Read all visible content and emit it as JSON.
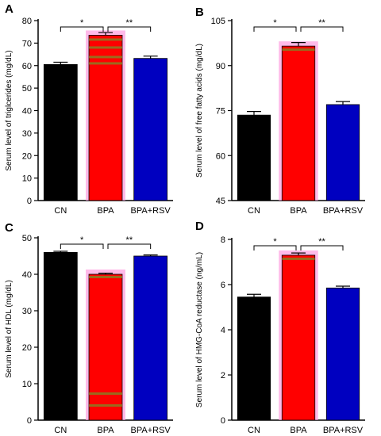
{
  "chart_data": [
    {
      "panel": "A",
      "type": "bar",
      "categories": [
        "CN",
        "BPA",
        "BPA+RSV"
      ],
      "values": [
        60.5,
        73.5,
        63.2
      ],
      "errors": [
        1.0,
        1.2,
        1.0
      ],
      "ylabel": "Serum level of triglcerides  (mg/dL)",
      "ylim": [
        0,
        80
      ],
      "yticks": [
        0,
        10,
        20,
        30,
        40,
        50,
        60,
        70,
        80
      ],
      "significance": [
        {
          "from": 0,
          "to": 1,
          "label": "*"
        },
        {
          "from": 1,
          "to": 2,
          "label": "**"
        }
      ]
    },
    {
      "panel": "B",
      "type": "bar",
      "categories": [
        "CN",
        "BPA",
        "BPA+RSV"
      ],
      "values": [
        73.5,
        96.5,
        77.0
      ],
      "errors": [
        1.2,
        1.2,
        1.0
      ],
      "ylabel": "Serum level of free fatty acids (mg/dL)",
      "ylim": [
        45,
        105
      ],
      "yticks": [
        45,
        60,
        75,
        90,
        105
      ],
      "significance": [
        {
          "from": 0,
          "to": 1,
          "label": "*"
        },
        {
          "from": 1,
          "to": 2,
          "label": "**"
        }
      ]
    },
    {
      "panel": "C",
      "type": "bar",
      "categories": [
        "CN",
        "BPA",
        "BPA+RSV"
      ],
      "values": [
        46.0,
        40.0,
        45.0
      ],
      "errors": [
        0.3,
        0.3,
        0.3
      ],
      "ylabel": "Serum level of HDL (mg/dL)",
      "ylim": [
        0,
        50
      ],
      "yticks": [
        0,
        10,
        20,
        30,
        40,
        50
      ],
      "significance": [
        {
          "from": 0,
          "to": 1,
          "label": "*"
        },
        {
          "from": 1,
          "to": 2,
          "label": "**"
        }
      ]
    },
    {
      "panel": "D",
      "type": "bar",
      "categories": [
        "CN",
        "BPA",
        "BPA+RSV"
      ],
      "values": [
        5.45,
        7.3,
        5.85
      ],
      "errors": [
        0.12,
        0.1,
        0.08
      ],
      "ylabel": "Serum level of HMG-CoA reductase (ng/mL)",
      "ylim": [
        0,
        8
      ],
      "yticks": [
        0,
        2,
        4,
        6,
        8
      ],
      "significance": [
        {
          "from": 0,
          "to": 1,
          "label": "*"
        },
        {
          "from": 1,
          "to": 2,
          "label": "**"
        }
      ]
    }
  ],
  "colors": {
    "CN": "#000000",
    "BPA": "#ff0000",
    "BPA+RSV": "#0000c0",
    "highlight": "#ff9de0",
    "stripe": "#9b6a1e"
  }
}
